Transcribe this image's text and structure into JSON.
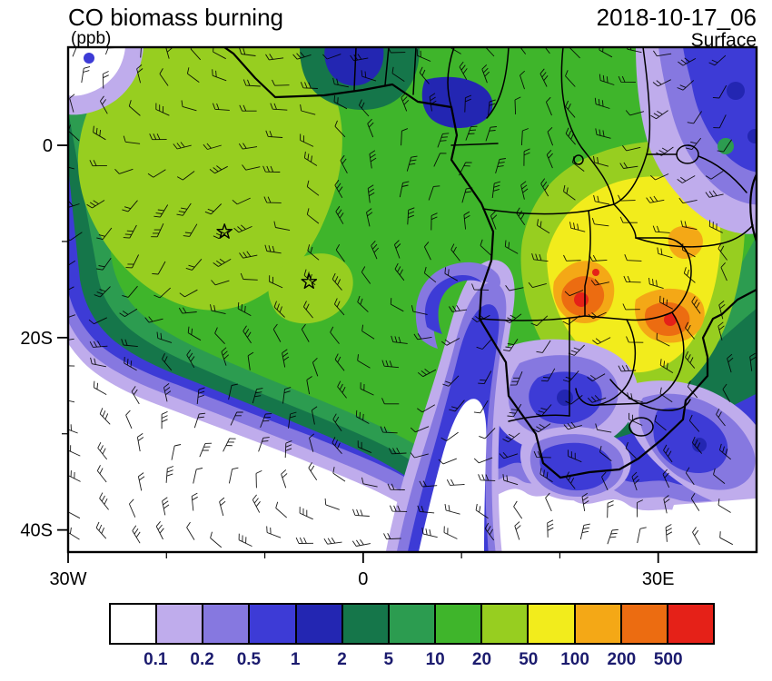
{
  "header": {
    "title": "CO biomass burning",
    "units": "(ppb)",
    "datetime": "2018-10-17_06",
    "level": "Surface"
  },
  "map": {
    "x_axis_labels": [
      {
        "label": "30W",
        "lon": -30
      },
      {
        "label": "0",
        "lon": 0
      },
      {
        "label": "30E",
        "lon": 30
      }
    ],
    "y_axis_labels": [
      {
        "label": "0",
        "lat": 0
      },
      {
        "label": "20S",
        "lat": -20
      },
      {
        "label": "40S",
        "lat": -40
      }
    ],
    "x_minor_lons": [
      -20,
      -10,
      10,
      20
    ],
    "y_minor_lats": [
      -10,
      -30
    ]
  },
  "colorbar": {
    "tick_labels": [
      "0.1",
      "0.2",
      "0.5",
      "1",
      "2",
      "5",
      "10",
      "20",
      "50",
      "100",
      "200",
      "500"
    ],
    "label_color": "#1b1b6e"
  },
  "chart_data": {
    "type": "heatmap",
    "title": "CO biomass burning",
    "units": "ppb",
    "time": "2018-10-17_06",
    "level": "Surface",
    "lon_range": [
      -30,
      40
    ],
    "lat_range": [
      -42.3,
      10.2
    ],
    "contour_levels": [
      0.1,
      0.2,
      0.5,
      1,
      2,
      5,
      10,
      20,
      50,
      100,
      200,
      500
    ],
    "palette": [
      "#FFFFFF",
      "#BFACEC",
      "#8678E0",
      "#3D3BD6",
      "#2326B2",
      "#15764A",
      "#2C9C50",
      "#3FB52B",
      "#97CE20",
      "#F2EC1C",
      "#F4A816",
      "#EC6C11",
      "#E52118"
    ],
    "overlays": [
      "wind barbs",
      "coastlines",
      "country borders"
    ],
    "markers": [
      {
        "type": "star",
        "lon": -14.1,
        "lat": -9.0
      },
      {
        "type": "star",
        "lon": -5.5,
        "lat": -14.2
      }
    ],
    "field_description": "CO biomass-burning plume: 20-50 ppb core over the South Atlantic, 50-500+ ppb maxima over Zambia/Zimbabwe, clean air below 0.1 ppb over the far South Atlantic"
  }
}
